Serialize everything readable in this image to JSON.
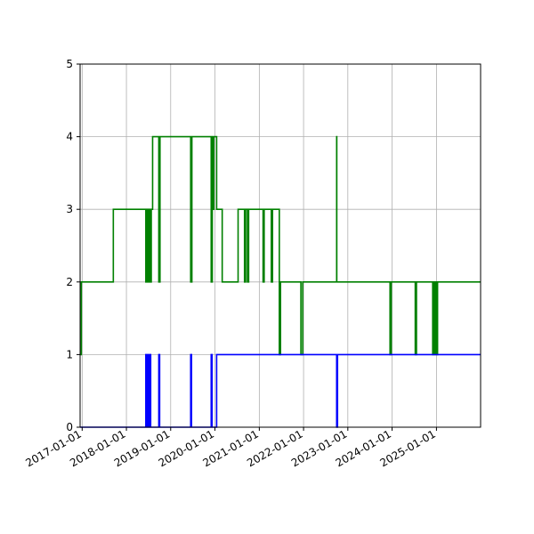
{
  "chart_data": {
    "type": "line",
    "title": "",
    "xlabel": "",
    "ylabel": "",
    "x_axis": "date",
    "xlim": [
      "2016-12-15",
      "2025-12-31"
    ],
    "ylim": [
      0,
      5
    ],
    "grid": true,
    "legend": "none",
    "x_ticks": [
      "2017-01-01",
      "2018-01-01",
      "2019-01-01",
      "2020-01-01",
      "2021-01-01",
      "2022-01-01",
      "2023-01-01",
      "2024-01-01",
      "2025-01-01"
    ],
    "y_ticks": [
      "0",
      "1",
      "2",
      "3",
      "4",
      "5"
    ],
    "series": [
      {
        "color": "#008000",
        "style": "step",
        "points": [
          [
            "2016-12-15",
            1
          ],
          [
            "2016-12-25",
            2
          ],
          [
            "2017-09-15",
            3
          ],
          [
            "2018-06-10",
            2
          ],
          [
            "2018-06-20",
            3
          ],
          [
            "2018-07-01",
            2
          ],
          [
            "2018-07-10",
            3
          ],
          [
            "2018-07-18",
            2
          ],
          [
            "2018-07-25",
            3
          ],
          [
            "2018-08-05",
            4
          ],
          [
            "2018-09-25",
            2
          ],
          [
            "2018-10-05",
            4
          ],
          [
            "2019-06-15",
            2
          ],
          [
            "2019-06-25",
            4
          ],
          [
            "2019-12-01",
            2
          ],
          [
            "2019-12-10",
            4
          ],
          [
            "2019-12-15",
            3
          ],
          [
            "2019-12-22",
            4
          ],
          [
            "2020-01-15",
            3
          ],
          [
            "2020-03-01",
            2
          ],
          [
            "2020-07-10",
            3
          ],
          [
            "2020-09-01",
            2
          ],
          [
            "2020-09-10",
            3
          ],
          [
            "2020-09-25",
            2
          ],
          [
            "2020-10-05",
            3
          ],
          [
            "2021-02-01",
            2
          ],
          [
            "2021-02-10",
            3
          ],
          [
            "2021-04-10",
            2
          ],
          [
            "2021-04-20",
            3
          ],
          [
            "2021-06-15",
            1
          ],
          [
            "2021-06-25",
            2
          ],
          [
            "2021-12-10",
            1
          ],
          [
            "2021-12-25",
            2
          ],
          [
            "2022-06-15",
            2
          ],
          [
            "2022-10-01",
            4
          ],
          [
            "2022-10-02",
            2
          ],
          [
            "2023-12-15",
            1
          ],
          [
            "2023-12-25",
            2
          ],
          [
            "2024-07-10",
            1
          ],
          [
            "2024-07-20",
            2
          ],
          [
            "2024-12-01",
            1
          ],
          [
            "2024-12-08",
            2
          ],
          [
            "2024-12-15",
            1
          ],
          [
            "2024-12-22",
            2
          ],
          [
            "2025-01-01",
            1
          ],
          [
            "2025-01-10",
            2
          ],
          [
            "2025-12-31",
            2
          ]
        ]
      },
      {
        "color": "#0000ff",
        "style": "step",
        "points": [
          [
            "2016-12-15",
            0
          ],
          [
            "2018-06-10",
            1
          ],
          [
            "2018-06-18",
            0
          ],
          [
            "2018-06-25",
            1
          ],
          [
            "2018-07-05",
            0
          ],
          [
            "2018-07-12",
            1
          ],
          [
            "2018-07-20",
            0
          ],
          [
            "2018-09-25",
            1
          ],
          [
            "2018-10-02",
            0
          ],
          [
            "2019-06-15",
            1
          ],
          [
            "2019-06-22",
            0
          ],
          [
            "2019-12-01",
            1
          ],
          [
            "2019-12-08",
            0
          ],
          [
            "2020-01-15",
            1
          ],
          [
            "2022-10-01",
            0
          ],
          [
            "2022-10-08",
            1
          ],
          [
            "2025-12-31",
            1
          ]
        ]
      }
    ]
  }
}
